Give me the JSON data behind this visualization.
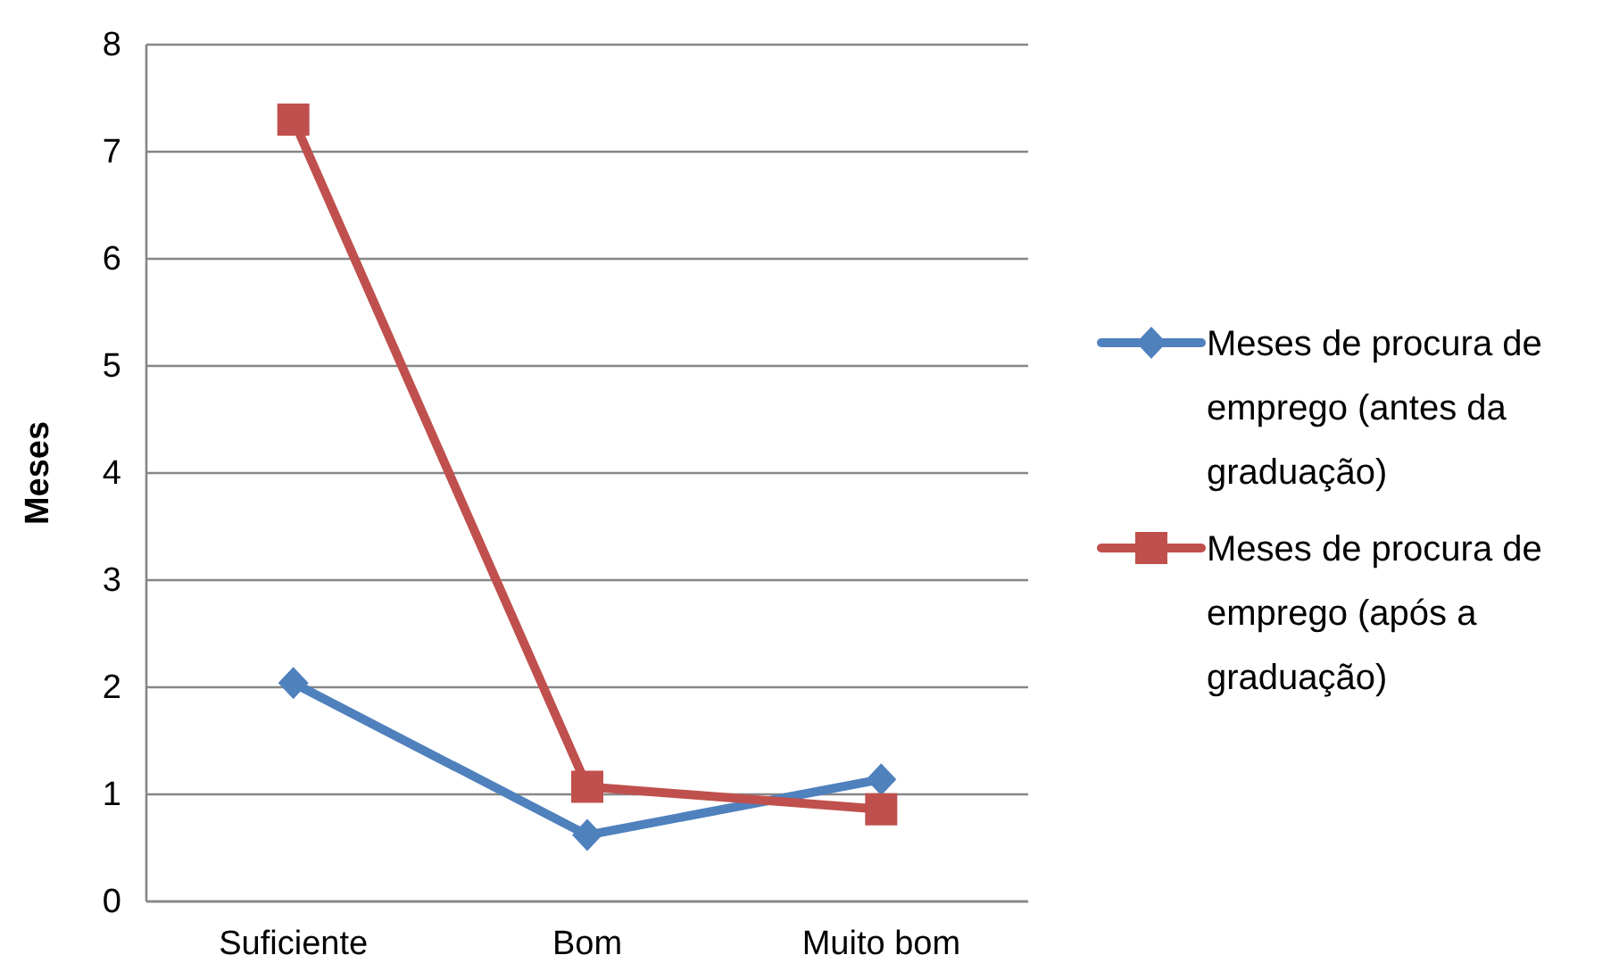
{
  "chart_data": {
    "type": "line",
    "ylabel": "Meses",
    "categories": [
      "Suficiente",
      "Bom",
      "Muito bom"
    ],
    "series": [
      {
        "name": "Meses de procura de emprego (antes da graduação)",
        "color": "#4f81bd",
        "values": [
          2.04,
          0.62,
          1.14
        ],
        "marker": "diamond"
      },
      {
        "name": "Meses de procura de emprego (após a graduação)",
        "color": "#c0504d",
        "values": [
          7.3,
          1.07,
          0.86
        ],
        "marker": "square"
      }
    ],
    "ylim": [
      0,
      8
    ],
    "yticks": [
      0,
      1,
      2,
      3,
      4,
      5,
      6,
      7,
      8
    ],
    "grid": "y",
    "legend": "right",
    "line_style": "solid"
  }
}
